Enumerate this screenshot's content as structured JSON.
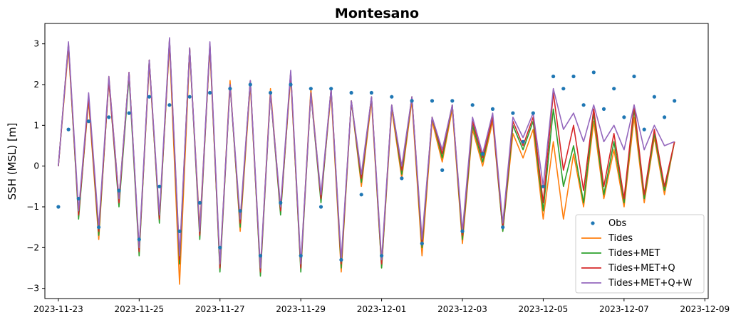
{
  "chart_data": {
    "type": "line",
    "title": "Montesano",
    "xlabel": "",
    "ylabel": "SSH (MSL) [m]",
    "xlim": [
      "2023-11-22T16:00",
      "2023-12-09T02:00"
    ],
    "ylim": [
      -3.25,
      3.5
    ],
    "x_ticks": [
      "2023-11-23",
      "2023-11-25",
      "2023-11-27",
      "2023-11-29",
      "2023-12-01",
      "2023-12-03",
      "2023-12-05",
      "2023-12-07",
      "2023-12-09"
    ],
    "y_ticks": [
      -3,
      -2,
      -1,
      0,
      1,
      2,
      3
    ],
    "grid": false,
    "legend_position": "lower-right",
    "colors": {
      "obs": "#1f77b4",
      "tides": "#ff7f0e",
      "tides_met": "#2ca02c",
      "tides_met_q": "#d62728",
      "tides_met_q_w": "#9467bd"
    },
    "series": [
      {
        "name": "Obs",
        "style": "points",
        "color": "#1f77b4",
        "x": [
          "2023-11-23T00:00",
          "2023-11-23T06:00",
          "2023-11-23T12:00",
          "2023-11-23T18:00",
          "2023-11-24T00:00",
          "2023-11-24T06:00",
          "2023-11-24T12:00",
          "2023-11-24T18:00",
          "2023-11-25T00:00",
          "2023-11-25T06:00",
          "2023-11-25T12:00",
          "2023-11-25T18:00",
          "2023-11-26T00:00",
          "2023-11-26T06:00",
          "2023-11-26T12:00",
          "2023-11-26T18:00",
          "2023-11-27T00:00",
          "2023-11-27T06:00",
          "2023-11-27T12:00",
          "2023-11-27T18:00",
          "2023-11-28T00:00",
          "2023-11-28T06:00",
          "2023-11-28T12:00",
          "2023-11-28T18:00",
          "2023-11-29T00:00",
          "2023-11-29T06:00",
          "2023-11-29T12:00",
          "2023-11-29T18:00",
          "2023-11-30T00:00",
          "2023-11-30T06:00",
          "2023-11-30T12:00",
          "2023-11-30T18:00",
          "2023-12-01T00:00",
          "2023-12-01T06:00",
          "2023-12-01T12:00",
          "2023-12-01T18:00",
          "2023-12-02T00:00",
          "2023-12-02T06:00",
          "2023-12-02T12:00",
          "2023-12-02T18:00",
          "2023-12-03T00:00",
          "2023-12-03T06:00",
          "2023-12-03T12:00",
          "2023-12-03T18:00",
          "2023-12-04T00:00",
          "2023-12-04T06:00",
          "2023-12-04T12:00",
          "2023-12-04T18:00",
          "2023-12-05T00:00",
          "2023-12-05T06:00",
          "2023-12-05T12:00",
          "2023-12-05T18:00",
          "2023-12-06T00:00",
          "2023-12-06T06:00",
          "2023-12-06T12:00",
          "2023-12-06T18:00",
          "2023-12-07T00:00",
          "2023-12-07T06:00",
          "2023-12-07T12:00",
          "2023-12-07T18:00",
          "2023-12-08T00:00",
          "2023-12-08T06:00"
        ],
        "y": [
          -1.0,
          0.9,
          -0.8,
          1.1,
          -1.5,
          1.2,
          -0.6,
          1.3,
          -1.8,
          1.7,
          -0.5,
          1.5,
          -1.6,
          1.7,
          -0.9,
          1.8,
          -2.0,
          1.9,
          -1.1,
          2.0,
          -2.2,
          1.8,
          -0.9,
          2.0,
          -2.2,
          1.9,
          -1.0,
          1.9,
          -2.3,
          1.8,
          -0.7,
          1.8,
          -2.2,
          1.7,
          -0.3,
          1.6,
          -1.9,
          1.6,
          -0.1,
          1.6,
          -1.6,
          1.5,
          0.3,
          1.4,
          -1.5,
          1.3,
          0.6,
          1.3,
          -0.5,
          2.2,
          1.9,
          2.2,
          1.5,
          2.3,
          1.4,
          1.9,
          1.2,
          2.2,
          0.9,
          1.7,
          1.2,
          1.6
        ]
      },
      {
        "name": "Tides",
        "style": "line",
        "color": "#ff7f0e",
        "x": [
          "2023-11-23T00:00",
          "2023-11-23T06:00",
          "2023-11-23T12:00",
          "2023-11-23T18:00",
          "2023-11-24T00:00",
          "2023-11-24T06:00",
          "2023-11-24T12:00",
          "2023-11-24T18:00",
          "2023-11-25T00:00",
          "2023-11-25T06:00",
          "2023-11-25T12:00",
          "2023-11-25T18:00",
          "2023-11-26T00:00",
          "2023-11-26T06:00",
          "2023-11-26T12:00",
          "2023-11-26T18:00",
          "2023-11-27T00:00",
          "2023-11-27T06:00",
          "2023-11-27T12:00",
          "2023-11-27T18:00",
          "2023-11-28T00:00",
          "2023-11-28T06:00",
          "2023-11-28T12:00",
          "2023-11-28T18:00",
          "2023-11-29T00:00",
          "2023-11-29T06:00",
          "2023-11-29T12:00",
          "2023-11-29T18:00",
          "2023-11-30T00:00",
          "2023-11-30T06:00",
          "2023-11-30T12:00",
          "2023-11-30T18:00",
          "2023-12-01T00:00",
          "2023-12-01T06:00",
          "2023-12-01T12:00",
          "2023-12-01T18:00",
          "2023-12-02T00:00",
          "2023-12-02T06:00",
          "2023-12-02T12:00",
          "2023-12-02T18:00",
          "2023-12-03T00:00",
          "2023-12-03T06:00",
          "2023-12-03T12:00",
          "2023-12-03T18:00",
          "2023-12-04T00:00",
          "2023-12-04T06:00",
          "2023-12-04T12:00",
          "2023-12-04T18:00",
          "2023-12-05T00:00",
          "2023-12-05T06:00",
          "2023-12-05T12:00",
          "2023-12-05T18:00",
          "2023-12-06T00:00",
          "2023-12-06T06:00",
          "2023-12-06T12:00",
          "2023-12-06T18:00",
          "2023-12-07T00:00",
          "2023-12-07T06:00",
          "2023-12-07T12:00",
          "2023-12-07T18:00",
          "2023-12-08T00:00",
          "2023-12-08T06:00"
        ],
        "y": [
          0.0,
          2.9,
          -1.2,
          1.6,
          -1.8,
          2.2,
          -0.8,
          2.3,
          -2.1,
          2.5,
          -1.3,
          3.0,
          -2.9,
          2.8,
          -1.5,
          2.9,
          -2.5,
          2.1,
          -1.6,
          2.0,
          -2.6,
          1.9,
          -1.1,
          2.2,
          -2.5,
          1.9,
          -0.8,
          1.8,
          -2.6,
          1.6,
          -0.5,
          1.6,
          -2.5,
          1.4,
          -0.3,
          1.6,
          -2.2,
          1.1,
          0.1,
          1.4,
          -1.9,
          0.9,
          0.0,
          1.1,
          -1.6,
          0.8,
          0.2,
          0.9,
          -1.3,
          0.6,
          -1.3,
          0.3,
          -1.0,
          1.1,
          -0.8,
          0.4,
          -1.0,
          1.2,
          -0.9,
          0.7,
          -0.7,
          0.6
        ]
      },
      {
        "name": "Tides+MET",
        "style": "line",
        "color": "#2ca02c",
        "x": [
          "2023-11-23T00:00",
          "2023-11-23T06:00",
          "2023-11-23T12:00",
          "2023-11-23T18:00",
          "2023-11-24T00:00",
          "2023-11-24T06:00",
          "2023-11-24T12:00",
          "2023-11-24T18:00",
          "2023-11-25T00:00",
          "2023-11-25T06:00",
          "2023-11-25T12:00",
          "2023-11-25T18:00",
          "2023-11-26T00:00",
          "2023-11-26T06:00",
          "2023-11-26T12:00",
          "2023-11-26T18:00",
          "2023-11-27T00:00",
          "2023-11-27T06:00",
          "2023-11-27T12:00",
          "2023-11-27T18:00",
          "2023-11-28T00:00",
          "2023-11-28T06:00",
          "2023-11-28T12:00",
          "2023-11-28T18:00",
          "2023-11-29T00:00",
          "2023-11-29T06:00",
          "2023-11-29T12:00",
          "2023-11-29T18:00",
          "2023-11-30T00:00",
          "2023-11-30T06:00",
          "2023-11-30T12:00",
          "2023-11-30T18:00",
          "2023-12-01T00:00",
          "2023-12-01T06:00",
          "2023-12-01T12:00",
          "2023-12-01T18:00",
          "2023-12-02T00:00",
          "2023-12-02T06:00",
          "2023-12-02T12:00",
          "2023-12-02T18:00",
          "2023-12-03T00:00",
          "2023-12-03T06:00",
          "2023-12-03T12:00",
          "2023-12-03T18:00",
          "2023-12-04T00:00",
          "2023-12-04T06:00",
          "2023-12-04T12:00",
          "2023-12-04T18:00",
          "2023-12-05T00:00",
          "2023-12-05T06:00",
          "2023-12-05T12:00",
          "2023-12-05T18:00",
          "2023-12-06T00:00",
          "2023-12-06T06:00",
          "2023-12-06T12:00",
          "2023-12-06T18:00",
          "2023-12-07T00:00",
          "2023-12-07T06:00",
          "2023-12-07T12:00",
          "2023-12-07T18:00",
          "2023-12-08T00:00",
          "2023-12-08T06:00"
        ],
        "y": [
          0.0,
          3.0,
          -1.3,
          1.7,
          -1.7,
          2.1,
          -1.0,
          2.2,
          -2.2,
          2.6,
          -1.4,
          3.1,
          -2.4,
          2.9,
          -1.8,
          3.0,
          -2.6,
          2.0,
          -1.5,
          2.1,
          -2.7,
          1.8,
          -1.2,
          2.3,
          -2.6,
          1.8,
          -0.9,
          1.9,
          -2.5,
          1.6,
          -0.4,
          1.7,
          -2.5,
          1.5,
          -0.2,
          1.7,
          -2.0,
          1.2,
          0.2,
          1.5,
          -1.8,
          1.0,
          0.1,
          1.2,
          -1.6,
          1.0,
          0.4,
          1.1,
          -1.1,
          1.4,
          -0.5,
          0.5,
          -0.9,
          1.3,
          -0.7,
          0.6,
          -0.9,
          1.4,
          -0.8,
          0.8,
          -0.6,
          0.6
        ]
      },
      {
        "name": "Tides+MET+Q",
        "style": "line",
        "color": "#d62728",
        "x": [
          "2023-11-23T00:00",
          "2023-11-23T06:00",
          "2023-11-23T12:00",
          "2023-11-23T18:00",
          "2023-11-24T00:00",
          "2023-11-24T06:00",
          "2023-11-24T12:00",
          "2023-11-24T18:00",
          "2023-11-25T00:00",
          "2023-11-25T06:00",
          "2023-11-25T12:00",
          "2023-11-25T18:00",
          "2023-11-26T00:00",
          "2023-11-26T06:00",
          "2023-11-26T12:00",
          "2023-11-26T18:00",
          "2023-11-27T00:00",
          "2023-11-27T06:00",
          "2023-11-27T12:00",
          "2023-11-27T18:00",
          "2023-11-28T00:00",
          "2023-11-28T06:00",
          "2023-11-28T12:00",
          "2023-11-28T18:00",
          "2023-11-29T00:00",
          "2023-11-29T06:00",
          "2023-11-29T12:00",
          "2023-11-29T18:00",
          "2023-11-30T00:00",
          "2023-11-30T06:00",
          "2023-11-30T12:00",
          "2023-11-30T18:00",
          "2023-12-01T00:00",
          "2023-12-01T06:00",
          "2023-12-01T12:00",
          "2023-12-01T18:00",
          "2023-12-02T00:00",
          "2023-12-02T06:00",
          "2023-12-02T12:00",
          "2023-12-02T18:00",
          "2023-12-03T00:00",
          "2023-12-03T06:00",
          "2023-12-03T12:00",
          "2023-12-03T18:00",
          "2023-12-04T00:00",
          "2023-12-04T06:00",
          "2023-12-04T12:00",
          "2023-12-04T18:00",
          "2023-12-05T00:00",
          "2023-12-05T06:00",
          "2023-12-05T12:00",
          "2023-12-05T18:00",
          "2023-12-06T00:00",
          "2023-12-06T06:00",
          "2023-12-06T12:00",
          "2023-12-06T18:00",
          "2023-12-07T00:00",
          "2023-12-07T06:00",
          "2023-12-07T12:00",
          "2023-12-07T18:00",
          "2023-12-08T00:00",
          "2023-12-08T06:00"
        ],
        "y": [
          0.0,
          3.0,
          -1.2,
          1.7,
          -1.6,
          2.1,
          -0.9,
          2.3,
          -2.1,
          2.6,
          -1.3,
          3.1,
          -2.3,
          2.9,
          -1.7,
          3.0,
          -2.5,
          2.0,
          -1.4,
          2.1,
          -2.6,
          1.8,
          -1.1,
          2.3,
          -2.5,
          1.8,
          -0.8,
          1.9,
          -2.4,
          1.6,
          -0.3,
          1.7,
          -2.4,
          1.5,
          -0.1,
          1.7,
          -1.9,
          1.2,
          0.3,
          1.5,
          -1.7,
          1.1,
          0.2,
          1.2,
          -1.5,
          1.1,
          0.5,
          1.2,
          -0.9,
          1.8,
          -0.1,
          1.0,
          -0.6,
          1.4,
          -0.5,
          0.8,
          -0.8,
          1.5,
          -0.7,
          0.9,
          -0.5,
          0.6
        ]
      },
      {
        "name": "Tides+MET+Q+W",
        "style": "line",
        "color": "#9467bd",
        "x": [
          "2023-11-23T00:00",
          "2023-11-23T06:00",
          "2023-11-23T12:00",
          "2023-11-23T18:00",
          "2023-11-24T00:00",
          "2023-11-24T06:00",
          "2023-11-24T12:00",
          "2023-11-24T18:00",
          "2023-11-25T00:00",
          "2023-11-25T06:00",
          "2023-11-25T12:00",
          "2023-11-25T18:00",
          "2023-11-26T00:00",
          "2023-11-26T06:00",
          "2023-11-26T12:00",
          "2023-11-26T18:00",
          "2023-11-27T00:00",
          "2023-11-27T06:00",
          "2023-11-27T12:00",
          "2023-11-27T18:00",
          "2023-11-28T00:00",
          "2023-11-28T06:00",
          "2023-11-28T12:00",
          "2023-11-28T18:00",
          "2023-11-29T00:00",
          "2023-11-29T06:00",
          "2023-11-29T12:00",
          "2023-11-29T18:00",
          "2023-11-30T00:00",
          "2023-11-30T06:00",
          "2023-11-30T12:00",
          "2023-11-30T18:00",
          "2023-12-01T00:00",
          "2023-12-01T06:00",
          "2023-12-01T12:00",
          "2023-12-01T18:00",
          "2023-12-02T00:00",
          "2023-12-02T06:00",
          "2023-12-02T12:00",
          "2023-12-02T18:00",
          "2023-12-03T00:00",
          "2023-12-03T06:00",
          "2023-12-03T12:00",
          "2023-12-03T18:00",
          "2023-12-04T00:00",
          "2023-12-04T06:00",
          "2023-12-04T12:00",
          "2023-12-04T18:00",
          "2023-12-05T00:00",
          "2023-12-05T06:00",
          "2023-12-05T12:00",
          "2023-12-05T18:00",
          "2023-12-06T00:00",
          "2023-12-06T06:00",
          "2023-12-06T12:00",
          "2023-12-06T18:00",
          "2023-12-07T00:00",
          "2023-12-07T06:00",
          "2023-12-07T12:00",
          "2023-12-07T18:00",
          "2023-12-08T00:00",
          "2023-12-08T06:00"
        ],
        "y": [
          0.0,
          3.05,
          -1.1,
          1.8,
          -1.5,
          2.2,
          -0.8,
          2.3,
          -2.0,
          2.6,
          -1.2,
          3.15,
          -2.2,
          2.9,
          -1.6,
          3.05,
          -2.4,
          2.0,
          -1.3,
          2.1,
          -2.5,
          1.8,
          -1.0,
          2.35,
          -2.4,
          1.8,
          -0.7,
          1.9,
          -2.3,
          1.6,
          -0.2,
          1.7,
          -2.3,
          1.5,
          0.0,
          1.7,
          -1.8,
          1.2,
          0.4,
          1.5,
          -1.6,
          1.2,
          0.3,
          1.3,
          -1.4,
          1.2,
          0.7,
          1.3,
          -0.5,
          1.9,
          0.9,
          1.3,
          0.6,
          1.5,
          0.6,
          1.0,
          0.4,
          1.5,
          0.4,
          1.0,
          0.5,
          0.6
        ]
      }
    ]
  }
}
